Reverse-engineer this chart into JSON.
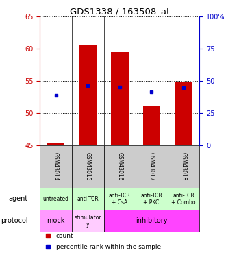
{
  "title": "GDS1338 / 163508_at",
  "samples": [
    "GSM43014",
    "GSM43015",
    "GSM43016",
    "GSM43017",
    "GSM43018"
  ],
  "bar_bottoms": [
    45,
    45,
    45,
    45,
    45
  ],
  "bar_tops": [
    45.3,
    60.6,
    59.5,
    51.1,
    54.9
  ],
  "percentile_values": [
    52.8,
    54.3,
    54.1,
    53.3,
    53.9
  ],
  "ylim": [
    45,
    65
  ],
  "y_ticks_left": [
    45,
    50,
    55,
    60,
    65
  ],
  "right_axis_labels": [
    "0",
    "25",
    "50",
    "75",
    "100%"
  ],
  "bar_color": "#cc0000",
  "percentile_color": "#0000cc",
  "agent_labels": [
    "untreated",
    "anti-TCR",
    "anti-TCR\n+ CsA",
    "anti-TCR\n+ PKCi",
    "anti-TCR\n+ Combo"
  ],
  "agent_bg": "#ccffcc",
  "sample_bg": "#cccccc",
  "protocol_mock_bg": "#ff99ff",
  "protocol_stim_bg": "#ffccff",
  "protocol_inhib_bg": "#ff44ff",
  "legend_count_color": "#cc0000",
  "legend_pct_color": "#0000cc",
  "left_axis_color": "#cc0000",
  "right_axis_color": "#0000cc"
}
